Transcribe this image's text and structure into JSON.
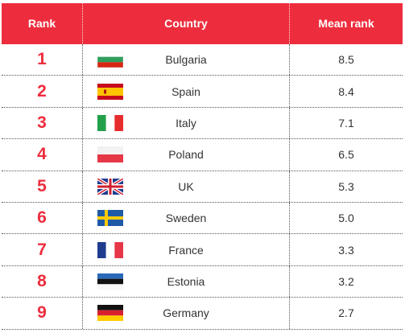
{
  "table": {
    "headers": {
      "rank": "Rank",
      "country": "Country",
      "mean": "Mean rank"
    },
    "rows": [
      {
        "rank": "1",
        "country": "Bulgaria",
        "mean": "8.5",
        "flag": "bulgaria-flag-icon"
      },
      {
        "rank": "2",
        "country": "Spain",
        "mean": "8.4",
        "flag": "spain-flag-icon"
      },
      {
        "rank": "3",
        "country": "Italy",
        "mean": "7.1",
        "flag": "italy-flag-icon"
      },
      {
        "rank": "4",
        "country": "Poland",
        "mean": "6.5",
        "flag": "poland-flag-icon"
      },
      {
        "rank": "5",
        "country": "UK",
        "mean": "5.3",
        "flag": "uk-flag-icon"
      },
      {
        "rank": "6",
        "country": "Sweden",
        "mean": "5.0",
        "flag": "sweden-flag-icon"
      },
      {
        "rank": "7",
        "country": "France",
        "mean": "3.3",
        "flag": "france-flag-icon"
      },
      {
        "rank": "8",
        "country": "Estonia",
        "mean": "3.2",
        "flag": "estonia-flag-icon"
      },
      {
        "rank": "9",
        "country": "Germany",
        "mean": "2.7",
        "flag": "germany-flag-icon"
      }
    ]
  },
  "colors": {
    "header_bg": "#ed2d3d",
    "rank_text": "#ed2d3d",
    "body_text": "#333333"
  }
}
